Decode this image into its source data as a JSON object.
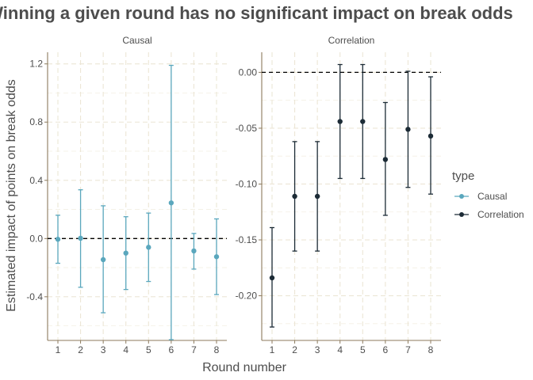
{
  "chart_data": {
    "type": "scatter",
    "title": "Winning a given round has no significant impact on break odds",
    "xlabel": "Round number",
    "ylabel": "Estimated impact of points on break odds",
    "legend": {
      "title": "type",
      "placement": "right",
      "entries": [
        {
          "name": "Causal",
          "color": "#5aa7bd"
        },
        {
          "name": "Correlation",
          "color": "#1c2b36"
        }
      ]
    },
    "grid": true,
    "reference_line_y": 0,
    "panels": [
      {
        "name": "Causal",
        "color": "#5aa7bd",
        "x": [
          1,
          2,
          3,
          4,
          5,
          6,
          7,
          8
        ],
        "x_ticks": [
          "1",
          "2",
          "3",
          "4",
          "5",
          "6",
          "7",
          "8"
        ],
        "ylim": [
          -0.7,
          1.28
        ],
        "y_ticks": [
          -0.4,
          0.0,
          0.4,
          0.8,
          1.2
        ],
        "y_tick_labels": [
          "-0.4",
          "0.0",
          "0.4",
          "0.8",
          "1.2"
        ],
        "estimate": [
          -0.005,
          0.002,
          -0.145,
          -0.1,
          -0.06,
          0.245,
          -0.085,
          -0.125
        ],
        "lower": [
          -0.17,
          -0.335,
          -0.51,
          -0.35,
          -0.295,
          -0.695,
          -0.21,
          -0.385
        ],
        "upper": [
          0.16,
          0.335,
          0.225,
          0.15,
          0.175,
          1.19,
          0.035,
          0.135
        ]
      },
      {
        "name": "Correlation",
        "color": "#1c2b36",
        "x": [
          1,
          2,
          3,
          4,
          5,
          6,
          7,
          8
        ],
        "x_ticks": [
          "1",
          "2",
          "3",
          "4",
          "5",
          "6",
          "7",
          "8"
        ],
        "ylim": [
          -0.24,
          0.018
        ],
        "y_ticks": [
          -0.2,
          -0.15,
          -0.1,
          -0.05,
          0.0
        ],
        "y_tick_labels": [
          "-0.20",
          "-0.15",
          "-0.10",
          "-0.05",
          "0.00"
        ],
        "estimate": [
          -0.184,
          -0.111,
          -0.111,
          -0.044,
          -0.044,
          -0.078,
          -0.051,
          -0.057
        ],
        "lower": [
          -0.228,
          -0.16,
          -0.16,
          -0.095,
          -0.095,
          -0.128,
          -0.103,
          -0.109
        ],
        "upper": [
          -0.139,
          -0.062,
          -0.062,
          0.007,
          0.007,
          -0.027,
          0.001,
          -0.004
        ]
      }
    ]
  }
}
